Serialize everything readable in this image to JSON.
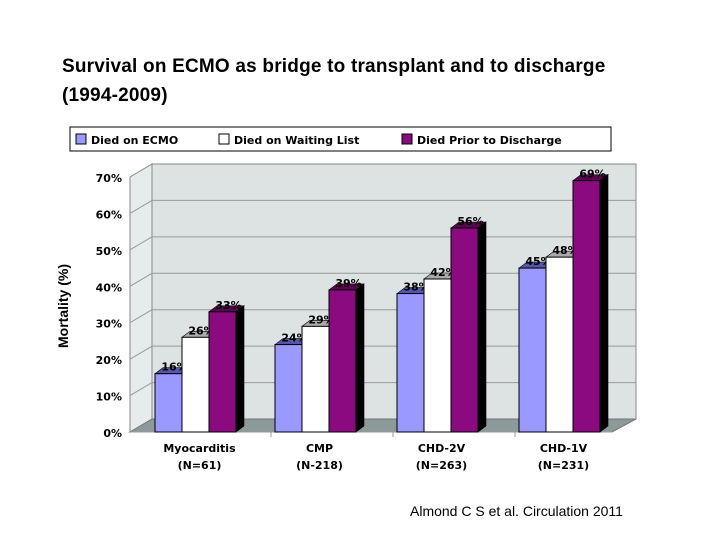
{
  "title": "Survival on ECMO as bridge to transplant and to discharge (1994-2009)",
  "citation": "Almond C S et al. Circulation 2011",
  "chart_data": {
    "type": "bar",
    "style": "3d-clustered",
    "title": "",
    "xlabel": "",
    "ylabel": "Mortality (%)",
    "ylim": [
      0,
      70
    ],
    "yticks": [
      "0%",
      "10%",
      "20%",
      "30%",
      "40%",
      "50%",
      "60%",
      "70%"
    ],
    "grid": true,
    "legend_position": "top",
    "categories": [
      {
        "name": "Myocarditis",
        "n": "(N=61)"
      },
      {
        "name": "CMP",
        "n": "(N-218)"
      },
      {
        "name": "CHD-2V",
        "n": "(N=263)"
      },
      {
        "name": "CHD-1V",
        "n": "(N=231)"
      }
    ],
    "series": [
      {
        "name": "Died on ECMO",
        "color": "#9999ff",
        "values": [
          16,
          24,
          38,
          45
        ],
        "labels": [
          "16%",
          "24%",
          "38%",
          "45%"
        ]
      },
      {
        "name": "Died on Waiting List",
        "color": "#ffffff",
        "values": [
          26,
          29,
          42,
          48
        ],
        "labels": [
          "26%",
          "29%",
          "42%",
          "48%"
        ]
      },
      {
        "name": "Died Prior to Discharge",
        "color": "#8b0a7f",
        "values": [
          33,
          39,
          56,
          69
        ],
        "labels": [
          "33%",
          "39%",
          "56%",
          "69%"
        ]
      }
    ],
    "wall_color": "#dde3e3",
    "floor_color": "#8c9a9a"
  }
}
